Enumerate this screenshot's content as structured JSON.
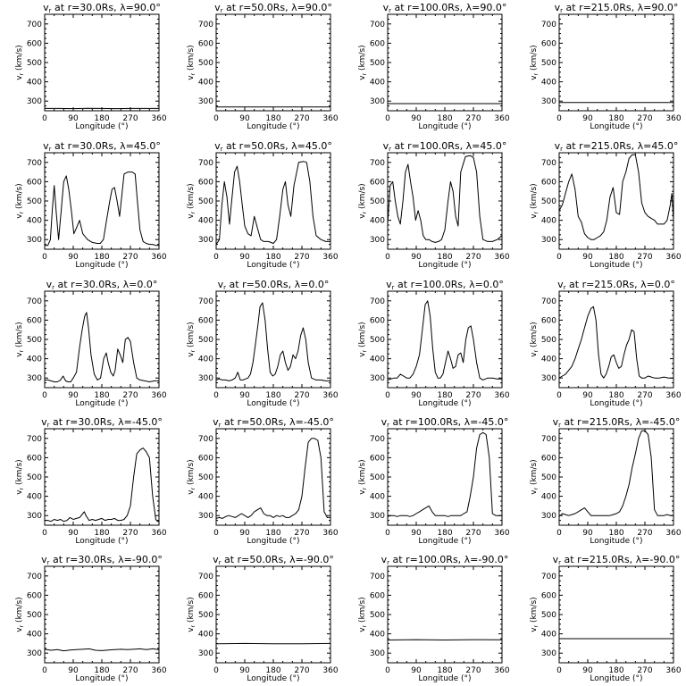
{
  "figure": {
    "xlabel": "Longitude (°)",
    "ylabel": "v",
    "ylabel_sub": "r",
    "ylabel_unit": " (km/s)",
    "title_prefix": "v",
    "title_sub": "r",
    "xticks": [
      0,
      90,
      180,
      270,
      360
    ],
    "yticks": [
      300,
      400,
      500,
      600,
      700
    ],
    "xlim": [
      0,
      360
    ],
    "ylim": [
      250,
      750
    ]
  },
  "chart_data": [
    {
      "type": "line",
      "title": " at r=30.0Rs, λ=90.0°",
      "x": [
        0,
        45,
        90,
        135,
        180,
        225,
        270,
        315,
        360
      ],
      "values": [
        262,
        262,
        261,
        263,
        262,
        261,
        262,
        262,
        262
      ]
    },
    {
      "type": "line",
      "title": " at r=50.0Rs, λ=90.0°",
      "x": [
        0,
        90,
        180,
        270,
        360
      ],
      "values": [
        270,
        270,
        270,
        270,
        270
      ]
    },
    {
      "type": "line",
      "title": " at r=100.0Rs, λ=90.0°",
      "x": [
        0,
        90,
        180,
        270,
        360
      ],
      "values": [
        287,
        287,
        287,
        287,
        287
      ]
    },
    {
      "type": "line",
      "title": " at r=215.0Rs, λ=90.0°",
      "x": [
        0,
        90,
        180,
        270,
        360
      ],
      "values": [
        293,
        293,
        293,
        293,
        293
      ]
    },
    {
      "type": "line",
      "title": " at r=30.0Rs, λ=45.0°",
      "x": [
        0,
        10,
        18,
        24,
        30,
        36,
        44,
        52,
        60,
        68,
        76,
        84,
        92,
        100,
        110,
        120,
        135,
        150,
        165,
        175,
        185,
        195,
        205,
        212,
        220,
        228,
        236,
        250,
        262,
        275,
        285,
        292,
        300,
        310,
        320,
        330,
        340,
        350,
        360
      ],
      "values": [
        270,
        270,
        300,
        450,
        580,
        450,
        300,
        450,
        600,
        630,
        560,
        450,
        330,
        360,
        400,
        330,
        300,
        285,
        280,
        280,
        300,
        400,
        500,
        560,
        570,
        500,
        420,
        640,
        650,
        650,
        640,
        500,
        350,
        290,
        280,
        275,
        275,
        270,
        270
      ]
    },
    {
      "type": "line",
      "title": " at r=50.0Rs, λ=45.0°",
      "x": [
        0,
        10,
        18,
        26,
        34,
        42,
        50,
        58,
        66,
        74,
        82,
        90,
        100,
        110,
        120,
        130,
        140,
        150,
        165,
        180,
        190,
        200,
        210,
        218,
        226,
        235,
        245,
        260,
        275,
        285,
        295,
        305,
        315,
        330,
        345,
        360
      ],
      "values": [
        275,
        300,
        480,
        600,
        520,
        380,
        520,
        650,
        680,
        600,
        480,
        370,
        330,
        320,
        420,
        360,
        300,
        290,
        290,
        280,
        300,
        420,
        560,
        600,
        480,
        420,
        580,
        700,
        705,
        700,
        600,
        420,
        320,
        300,
        290,
        290
      ]
    },
    {
      "type": "line",
      "title": " at r=100.0Rs, λ=45.0°",
      "x": [
        0,
        8,
        16,
        24,
        32,
        40,
        48,
        56,
        64,
        72,
        80,
        88,
        96,
        104,
        112,
        120,
        130,
        140,
        150,
        160,
        170,
        180,
        190,
        198,
        206,
        214,
        222,
        230,
        245,
        260,
        270,
        280,
        290,
        300,
        315,
        330,
        345,
        360
      ],
      "values": [
        380,
        580,
        600,
        500,
        420,
        380,
        500,
        650,
        690,
        600,
        520,
        400,
        450,
        400,
        320,
        300,
        300,
        290,
        285,
        290,
        300,
        350,
        500,
        600,
        550,
        420,
        370,
        650,
        730,
        735,
        725,
        650,
        420,
        300,
        290,
        290,
        300,
        320
      ]
    },
    {
      "type": "line",
      "title": " at r=215.0Rs, λ=45.0°",
      "x": [
        0,
        10,
        20,
        30,
        40,
        50,
        60,
        70,
        80,
        90,
        100,
        110,
        120,
        130,
        140,
        150,
        160,
        170,
        180,
        190,
        200,
        210,
        220,
        230,
        240,
        250,
        260,
        270,
        280,
        290,
        300,
        310,
        320,
        330,
        340,
        350,
        355,
        360
      ],
      "values": [
        450,
        480,
        540,
        600,
        640,
        560,
        420,
        390,
        330,
        310,
        300,
        300,
        310,
        320,
        340,
        400,
        520,
        570,
        440,
        430,
        600,
        650,
        720,
        740,
        740,
        650,
        490,
        440,
        420,
        410,
        400,
        380,
        380,
        380,
        400,
        480,
        540,
        400
      ]
    },
    {
      "type": "line",
      "title": " at r=30.0Rs, λ=0.0°",
      "x": [
        0,
        10,
        20,
        30,
        40,
        50,
        58,
        66,
        74,
        82,
        90,
        100,
        110,
        118,
        126,
        132,
        138,
        146,
        156,
        166,
        176,
        186,
        194,
        200,
        208,
        216,
        222,
        230,
        238,
        246,
        254,
        262,
        270,
        280,
        290,
        300,
        315,
        330,
        345,
        360
      ],
      "values": [
        290,
        290,
        285,
        280,
        280,
        290,
        310,
        285,
        280,
        280,
        300,
        330,
        460,
        550,
        620,
        640,
        560,
        420,
        320,
        290,
        300,
        400,
        430,
        380,
        330,
        310,
        340,
        450,
        420,
        380,
        500,
        510,
        490,
        380,
        300,
        290,
        285,
        280,
        285,
        285
      ]
    },
    {
      "type": "line",
      "title": " at r=50.0Rs, λ=0.0°",
      "x": [
        0,
        10,
        20,
        30,
        40,
        50,
        60,
        68,
        76,
        84,
        92,
        100,
        108,
        116,
        124,
        132,
        138,
        146,
        154,
        162,
        170,
        178,
        186,
        194,
        202,
        210,
        218,
        226,
        234,
        242,
        250,
        258,
        266,
        274,
        282,
        290,
        300,
        315,
        330,
        345,
        360
      ],
      "values": [
        290,
        295,
        290,
        290,
        285,
        290,
        300,
        330,
        290,
        290,
        295,
        300,
        320,
        380,
        480,
        580,
        670,
        690,
        600,
        450,
        330,
        310,
        320,
        360,
        420,
        440,
        380,
        340,
        360,
        420,
        400,
        440,
        520,
        560,
        500,
        380,
        300,
        290,
        290,
        285,
        285
      ]
    },
    {
      "type": "line",
      "title": " at r=100.0Rs, λ=0.0°",
      "x": [
        0,
        10,
        20,
        30,
        40,
        50,
        60,
        70,
        80,
        90,
        100,
        110,
        118,
        126,
        134,
        142,
        150,
        158,
        166,
        174,
        182,
        190,
        198,
        206,
        214,
        222,
        230,
        238,
        246,
        254,
        262,
        270,
        280,
        290,
        300,
        315,
        330,
        345,
        360
      ],
      "values": [
        290,
        295,
        300,
        300,
        320,
        310,
        300,
        300,
        320,
        360,
        420,
        560,
        680,
        700,
        620,
        450,
        330,
        300,
        300,
        320,
        380,
        440,
        400,
        350,
        360,
        420,
        430,
        380,
        500,
        560,
        570,
        500,
        380,
        300,
        290,
        300,
        300,
        295,
        295
      ]
    },
    {
      "type": "line",
      "title": " at r=215.0Rs, λ=0.0°",
      "x": [
        0,
        10,
        20,
        30,
        40,
        50,
        60,
        70,
        80,
        90,
        100,
        108,
        116,
        124,
        132,
        140,
        148,
        156,
        164,
        172,
        180,
        188,
        196,
        204,
        212,
        220,
        228,
        236,
        244,
        252,
        260,
        270,
        280,
        290,
        300,
        315,
        330,
        345,
        360
      ],
      "values": [
        300,
        310,
        320,
        340,
        360,
        400,
        450,
        500,
        560,
        620,
        660,
        670,
        600,
        420,
        320,
        300,
        320,
        360,
        410,
        420,
        380,
        350,
        360,
        420,
        470,
        500,
        550,
        540,
        400,
        310,
        300,
        300,
        310,
        305,
        300,
        300,
        305,
        300,
        300
      ]
    },
    {
      "type": "line",
      "title": " at r=30.0Rs, λ=-45.0°",
      "x": [
        0,
        10,
        20,
        30,
        40,
        50,
        60,
        70,
        80,
        90,
        100,
        110,
        120,
        125,
        130,
        140,
        150,
        160,
        170,
        180,
        190,
        200,
        210,
        220,
        230,
        240,
        250,
        260,
        270,
        280,
        290,
        300,
        310,
        320,
        330,
        340,
        350,
        355,
        360
      ],
      "values": [
        275,
        275,
        270,
        280,
        275,
        280,
        270,
        275,
        290,
        280,
        285,
        290,
        310,
        320,
        300,
        275,
        280,
        275,
        280,
        285,
        275,
        280,
        280,
        285,
        275,
        275,
        280,
        300,
        350,
        500,
        620,
        640,
        650,
        630,
        600,
        400,
        280,
        270,
        270
      ]
    },
    {
      "type": "line",
      "title": " at r=50.0Rs, λ=-45.0°",
      "x": [
        0,
        10,
        20,
        30,
        40,
        50,
        60,
        70,
        80,
        90,
        100,
        110,
        120,
        130,
        140,
        150,
        160,
        170,
        180,
        190,
        200,
        210,
        220,
        230,
        240,
        250,
        260,
        270,
        280,
        290,
        300,
        310,
        320,
        330,
        340,
        350,
        360
      ],
      "values": [
        285,
        290,
        285,
        295,
        300,
        295,
        290,
        300,
        310,
        300,
        290,
        300,
        320,
        330,
        340,
        310,
        300,
        300,
        290,
        300,
        295,
        300,
        290,
        290,
        300,
        310,
        330,
        400,
        550,
        680,
        700,
        700,
        690,
        600,
        320,
        290,
        290
      ]
    },
    {
      "type": "line",
      "title": " at r=100.0Rs, λ=-45.0°",
      "x": [
        0,
        10,
        20,
        30,
        40,
        50,
        60,
        70,
        80,
        90,
        100,
        110,
        120,
        130,
        140,
        150,
        160,
        170,
        180,
        190,
        200,
        210,
        220,
        230,
        240,
        250,
        260,
        270,
        280,
        290,
        300,
        310,
        320,
        330,
        340,
        350,
        360
      ],
      "values": [
        295,
        300,
        300,
        295,
        300,
        300,
        300,
        295,
        300,
        310,
        320,
        330,
        340,
        350,
        320,
        300,
        300,
        300,
        300,
        295,
        300,
        300,
        300,
        300,
        310,
        320,
        400,
        500,
        650,
        720,
        730,
        720,
        600,
        310,
        300,
        300,
        300
      ]
    },
    {
      "type": "line",
      "title": " at r=215.0Rs, λ=-45.0°",
      "x": [
        0,
        10,
        20,
        30,
        40,
        50,
        60,
        70,
        80,
        90,
        100,
        110,
        120,
        130,
        140,
        150,
        160,
        170,
        180,
        190,
        200,
        210,
        220,
        230,
        240,
        250,
        260,
        270,
        280,
        290,
        300,
        310,
        320,
        330,
        340,
        350,
        360
      ],
      "values": [
        295,
        310,
        305,
        300,
        305,
        310,
        320,
        330,
        340,
        320,
        300,
        300,
        300,
        300,
        300,
        300,
        300,
        305,
        310,
        320,
        350,
        400,
        460,
        550,
        620,
        700,
        740,
        740,
        720,
        600,
        330,
        300,
        300,
        300,
        305,
        300,
        300
      ]
    },
    {
      "type": "line",
      "title": " at r=30.0Rs, λ=-90.0°",
      "x": [
        0,
        20,
        40,
        60,
        80,
        100,
        120,
        140,
        160,
        180,
        200,
        220,
        240,
        260,
        280,
        300,
        320,
        340,
        360
      ],
      "values": [
        320,
        315,
        318,
        312,
        316,
        318,
        320,
        322,
        315,
        313,
        316,
        318,
        320,
        318,
        320,
        322,
        318,
        322,
        318
      ]
    },
    {
      "type": "line",
      "title": " at r=50.0Rs, λ=-90.0°",
      "x": [
        0,
        90,
        180,
        270,
        360
      ],
      "values": [
        348,
        350,
        348,
        348,
        350
      ]
    },
    {
      "type": "line",
      "title": " at r=100.0Rs, λ=-90.0°",
      "x": [
        0,
        90,
        180,
        270,
        360
      ],
      "values": [
        368,
        370,
        368,
        370,
        369
      ]
    },
    {
      "type": "line",
      "title": " at r=215.0Rs, λ=-90.0°",
      "x": [
        0,
        90,
        180,
        270,
        360
      ],
      "values": [
        375,
        375,
        375,
        375,
        375
      ]
    }
  ]
}
